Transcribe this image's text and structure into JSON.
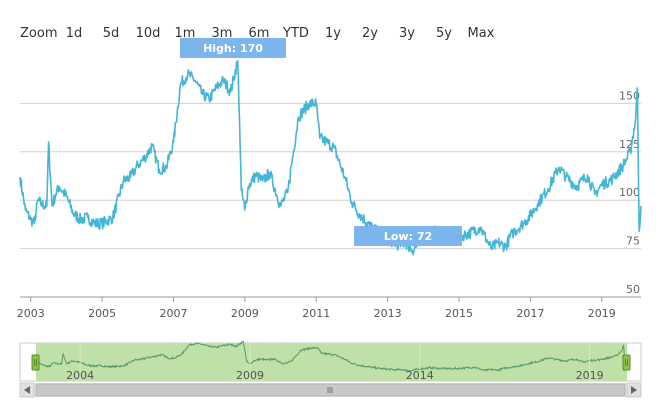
{
  "zoom": {
    "label": "Zoom",
    "buttons": [
      "1d",
      "5d",
      "10d",
      "1m",
      "3m",
      "6m",
      "YTD",
      "1y",
      "2y",
      "3y",
      "5y",
      "Max"
    ]
  },
  "annotations": {
    "high": "High: 170",
    "low": "Low: 72"
  },
  "colors": {
    "line": "#45b5d6",
    "grid": "#d0d0d0",
    "flag": "#7cb5ec",
    "navigator_fill": "#bfe0a6",
    "navigator_line": "#5a9a6a",
    "handle": "#8bc34a",
    "scrollbar_track": "#e8e8e8",
    "scrollbar_thumb": "#c8c8c8"
  },
  "chart_data": {
    "type": "line",
    "title": "",
    "xlabel": "",
    "ylabel": "",
    "x_ticks": [
      "2003",
      "2005",
      "2007",
      "2009",
      "2011",
      "2013",
      "2015",
      "2017",
      "2019"
    ],
    "y_ticks": [
      "50",
      "75",
      "100",
      "125",
      "150"
    ],
    "ylim": [
      50,
      175
    ],
    "xlim": [
      2002.7,
      2020.1
    ],
    "grid": true,
    "navigator_ticks": [
      "2004",
      "2009",
      "2014",
      "2019"
    ],
    "series": [
      {
        "x": [
          2002.7,
          2002.85,
          2003.0,
          2003.1,
          2003.2,
          2003.3,
          2003.45,
          2003.5,
          2003.6,
          2003.7,
          2003.8,
          2004.0,
          2004.2,
          2004.4,
          2004.6,
          2004.8,
          2005.0,
          2005.3,
          2005.6,
          2005.8,
          2006.0,
          2006.2,
          2006.4,
          2006.6,
          2006.8,
          2007.0,
          2007.2,
          2007.4,
          2007.6,
          2007.8,
          2008.0,
          2008.2,
          2008.4,
          2008.6,
          2008.8,
          2008.85,
          2008.9,
          2009.0,
          2009.1,
          2009.3,
          2009.5,
          2009.7,
          2010.0,
          2010.2,
          2010.5,
          2010.8,
          2011.0,
          2011.1,
          2011.3,
          2011.5,
          2011.8,
          2012.0,
          2012.2,
          2012.5,
          2012.8,
          2013.0,
          2013.3,
          2013.5,
          2013.7,
          2014.0,
          2014.3,
          2014.6,
          2015.0,
          2015.3,
          2015.6,
          2015.9,
          2016.1,
          2016.3,
          2016.5,
          2016.8,
          2017.0,
          2017.2,
          2017.5,
          2017.8,
          2018.0,
          2018.3,
          2018.6,
          2018.8,
          2019.0,
          2019.3,
          2019.6,
          2019.8,
          2019.95,
          2020.0,
          2020.05,
          2020.1
        ],
        "y": [
          112,
          95,
          90,
          88,
          100,
          98,
          97,
          130,
          97,
          103,
          107,
          102,
          93,
          90,
          91,
          88,
          88,
          91,
          110,
          112,
          118,
          122,
          128,
          116,
          117,
          130,
          160,
          165,
          162,
          155,
          152,
          158,
          162,
          156,
          172,
          142,
          105,
          95,
          107,
          113,
          110,
          114,
          97,
          104,
          143,
          150,
          150,
          132,
          130,
          127,
          112,
          99,
          93,
          87,
          82,
          80,
          77,
          78,
          74,
          80,
          84,
          82,
          81,
          83,
          86,
          75,
          78,
          76,
          83,
          88,
          92,
          98,
          106,
          117,
          112,
          107,
          113,
          103,
          108,
          111,
          118,
          125,
          142,
          158,
          84,
          97
        ]
      }
    ]
  }
}
